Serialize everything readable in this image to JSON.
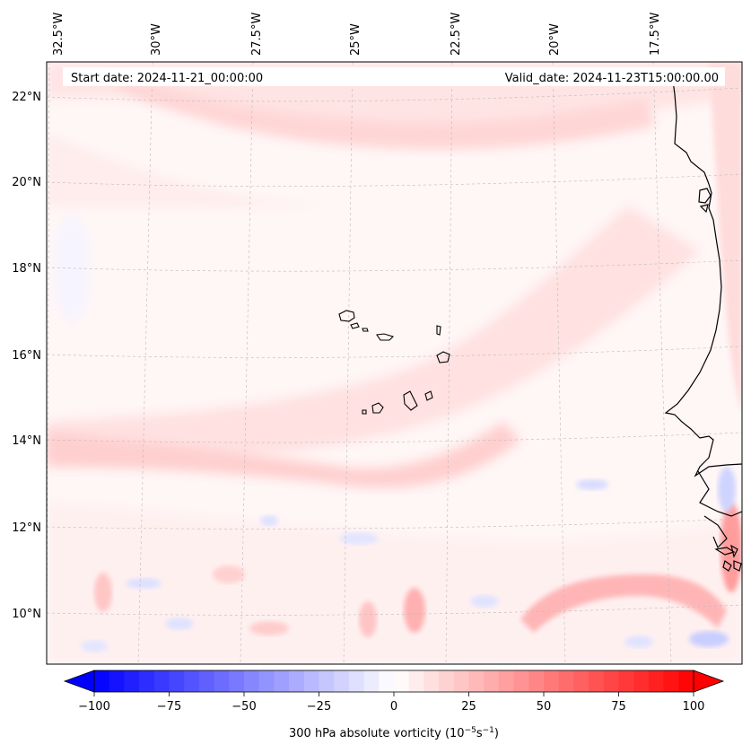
{
  "header": {
    "start_date": "Start date: 2024-11-21_00:00:00",
    "valid_date": "Valid_date: 2024-11-23T15:00:00.00"
  },
  "axes": {
    "lon_labels": [
      "32.5°W",
      "30°W",
      "27.5°W",
      "25°W",
      "22.5°W",
      "20°W",
      "17.5°W"
    ],
    "lat_labels": [
      "22°N",
      "20°N",
      "18°N",
      "16°N",
      "14°N",
      "12°N",
      "10°N"
    ]
  },
  "colorbar": {
    "label_prefix": "300 hPa absolute vorticity (10",
    "label_exp1": "−5",
    "label_mid": "s",
    "label_exp2": "−1",
    "label_suffix": ")",
    "min": -100,
    "max": 100,
    "ticks": [
      "−100",
      "−75",
      "−50",
      "−25",
      "0",
      "25",
      "50",
      "75",
      "100"
    ],
    "color_low": "#0000ff",
    "color_mid": "#ffffff",
    "color_high": "#ff0000"
  }
}
